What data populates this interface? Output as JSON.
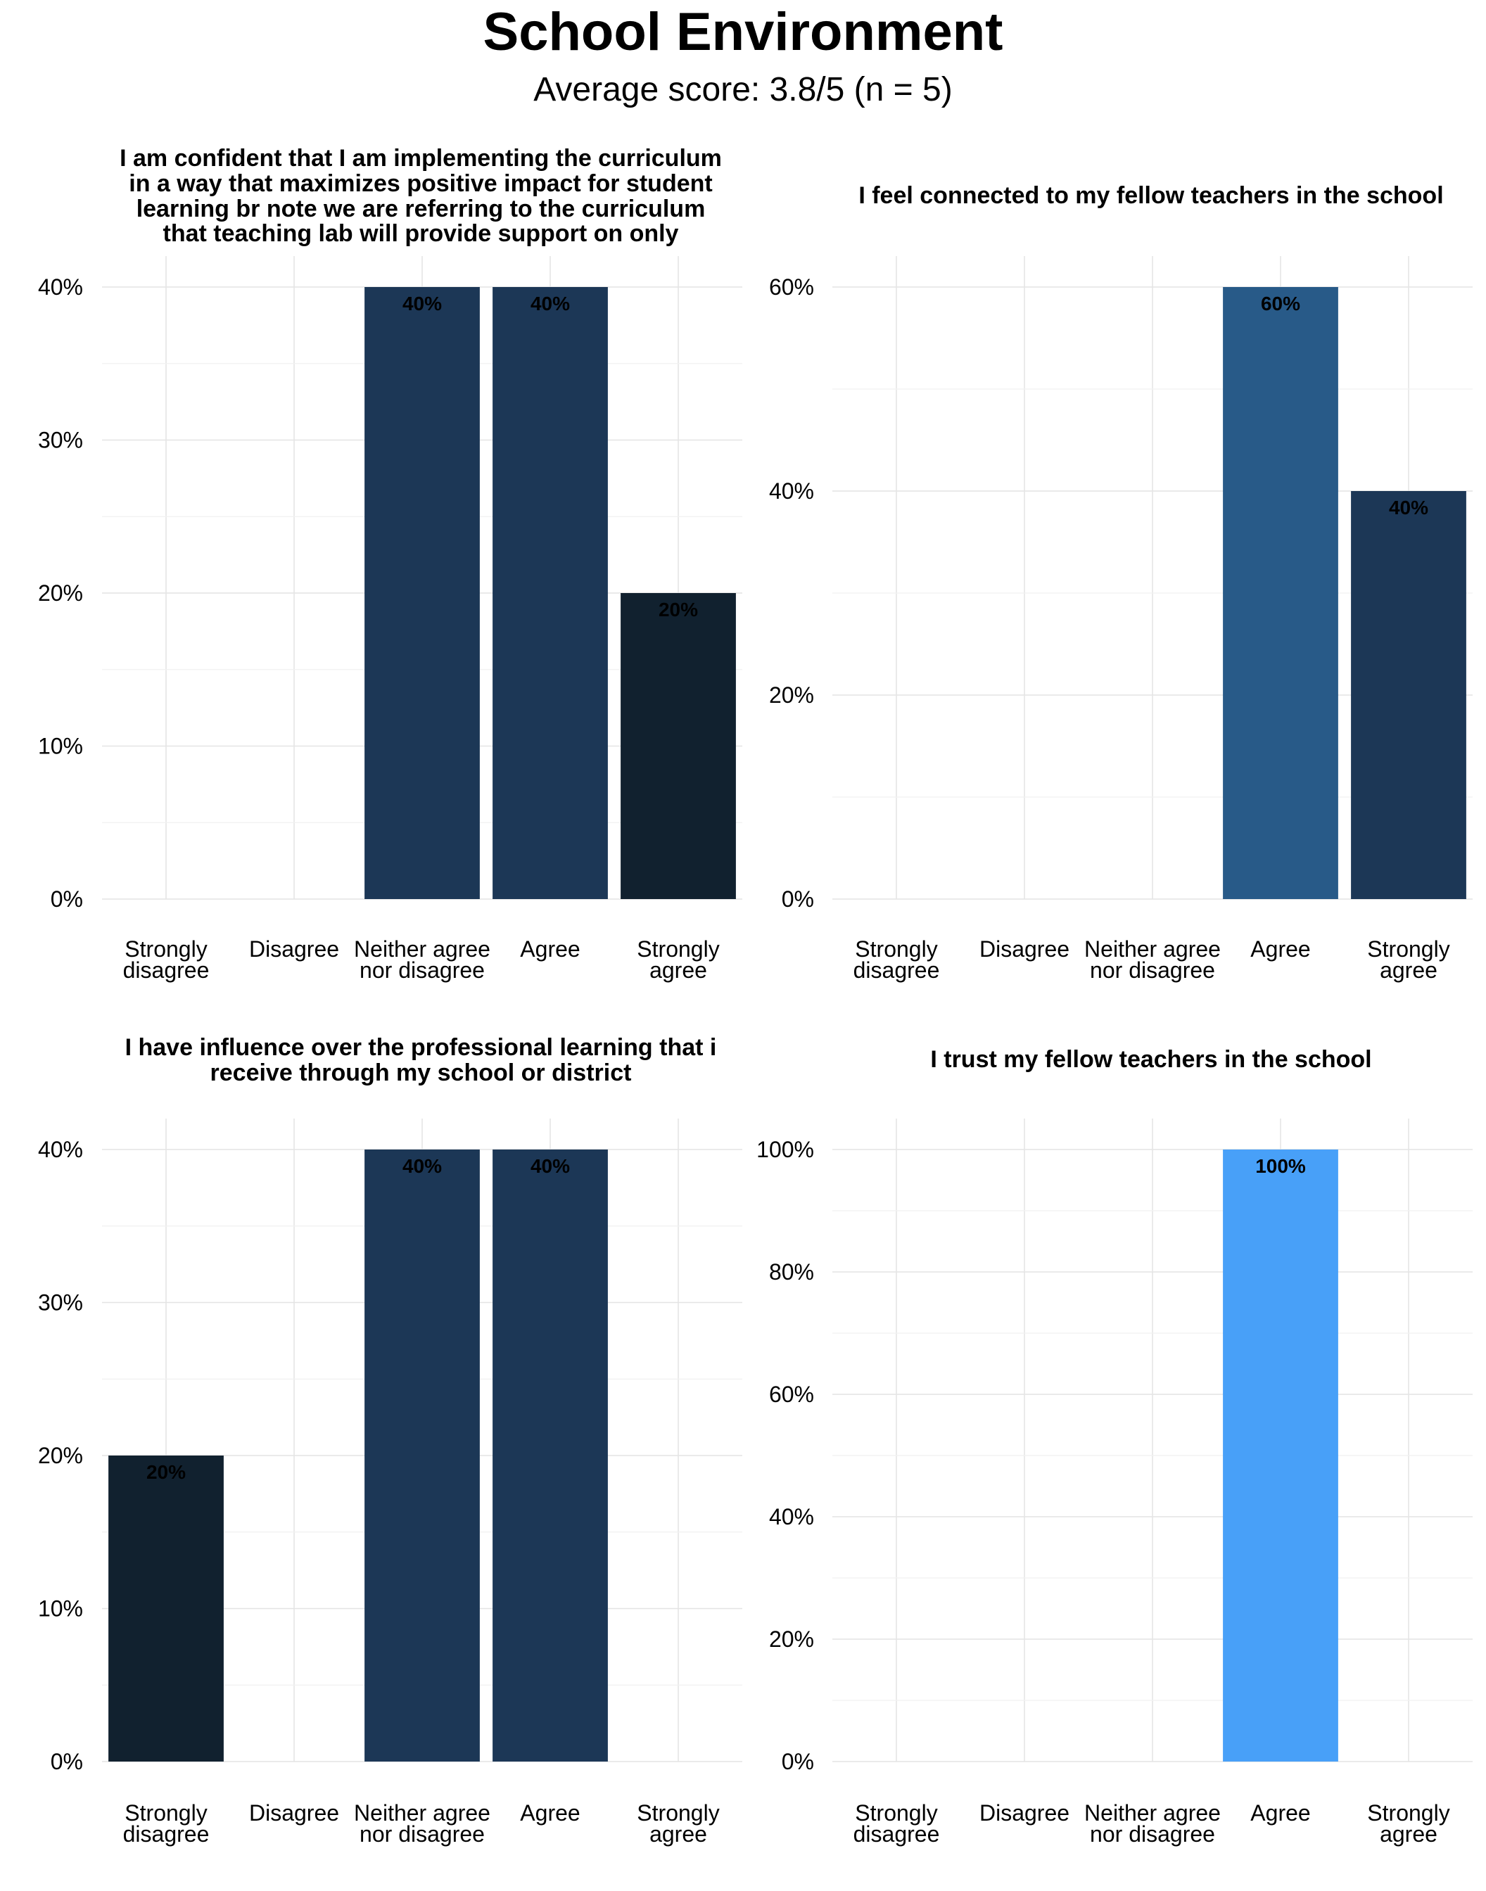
{
  "header": {
    "title": "School Environment",
    "subtitle": "Average score: 3.8/5 (n = 5)"
  },
  "chart_data": [
    {
      "type": "bar",
      "title_lines": [
        "I am confident that I am implementing the curriculum",
        "in a way that maximizes positive impact for student",
        "learning br note we are referring to the curriculum",
        "that teaching lab will provide support on only"
      ],
      "categories": [
        [
          "Strongly",
          "disagree"
        ],
        [
          "Disagree"
        ],
        [
          "Neither agree",
          "nor disagree"
        ],
        [
          "Agree"
        ],
        [
          "Strongly",
          "agree"
        ]
      ],
      "values": [
        0,
        0,
        40,
        40,
        20
      ],
      "labels": [
        "",
        "",
        "40%",
        "40%",
        "20%"
      ],
      "colors": [
        "#10202f",
        "#1a3350",
        "#1c3756",
        "#1c3756",
        "#11212f"
      ],
      "yticks": [
        0,
        10,
        20,
        30,
        40
      ],
      "ytick_labels": [
        "0%",
        "10%",
        "20%",
        "30%",
        "40%"
      ],
      "ylim": [
        0,
        40
      ]
    },
    {
      "type": "bar",
      "title_lines": [
        "I feel connected to my fellow teachers in the school"
      ],
      "categories": [
        [
          "Strongly",
          "disagree"
        ],
        [
          "Disagree"
        ],
        [
          "Neither agree",
          "nor disagree"
        ],
        [
          "Agree"
        ],
        [
          "Strongly",
          "agree"
        ]
      ],
      "values": [
        0,
        0,
        0,
        60,
        40
      ],
      "labels": [
        "",
        "",
        "",
        "60%",
        "40%"
      ],
      "colors": [
        "#10202f",
        "#1a3350",
        "#1c3756",
        "#285a88",
        "#1c3756"
      ],
      "yticks": [
        0,
        20,
        40,
        60
      ],
      "ytick_labels": [
        "0%",
        "20%",
        "40%",
        "60%"
      ],
      "ylim": [
        0,
        60
      ]
    },
    {
      "type": "bar",
      "title_lines": [
        "I have influence over the professional learning that i",
        "receive through my school or district"
      ],
      "categories": [
        [
          "Strongly",
          "disagree"
        ],
        [
          "Disagree"
        ],
        [
          "Neither agree",
          "nor disagree"
        ],
        [
          "Agree"
        ],
        [
          "Strongly",
          "agree"
        ]
      ],
      "values": [
        20,
        0,
        40,
        40,
        0
      ],
      "labels": [
        "20%",
        "",
        "40%",
        "40%",
        ""
      ],
      "colors": [
        "#11212f",
        "#1a3350",
        "#1c3756",
        "#1c3756",
        "#11212f"
      ],
      "yticks": [
        0,
        10,
        20,
        30,
        40
      ],
      "ytick_labels": [
        "0%",
        "10%",
        "20%",
        "30%",
        "40%"
      ],
      "ylim": [
        0,
        40
      ]
    },
    {
      "type": "bar",
      "title_lines": [
        "I trust my fellow teachers in the school"
      ],
      "categories": [
        [
          "Strongly",
          "disagree"
        ],
        [
          "Disagree"
        ],
        [
          "Neither agree",
          "nor disagree"
        ],
        [
          "Agree"
        ],
        [
          "Strongly",
          "agree"
        ]
      ],
      "values": [
        0,
        0,
        0,
        100,
        0
      ],
      "labels": [
        "",
        "",
        "",
        "100%",
        ""
      ],
      "colors": [
        "#10202f",
        "#1a3350",
        "#1c3756",
        "#48a0f8",
        "#11212f"
      ],
      "yticks": [
        0,
        20,
        40,
        60,
        80,
        100
      ],
      "ytick_labels": [
        "0%",
        "20%",
        "40%",
        "60%",
        "80%",
        "100%"
      ],
      "ylim": [
        0,
        100
      ]
    }
  ]
}
